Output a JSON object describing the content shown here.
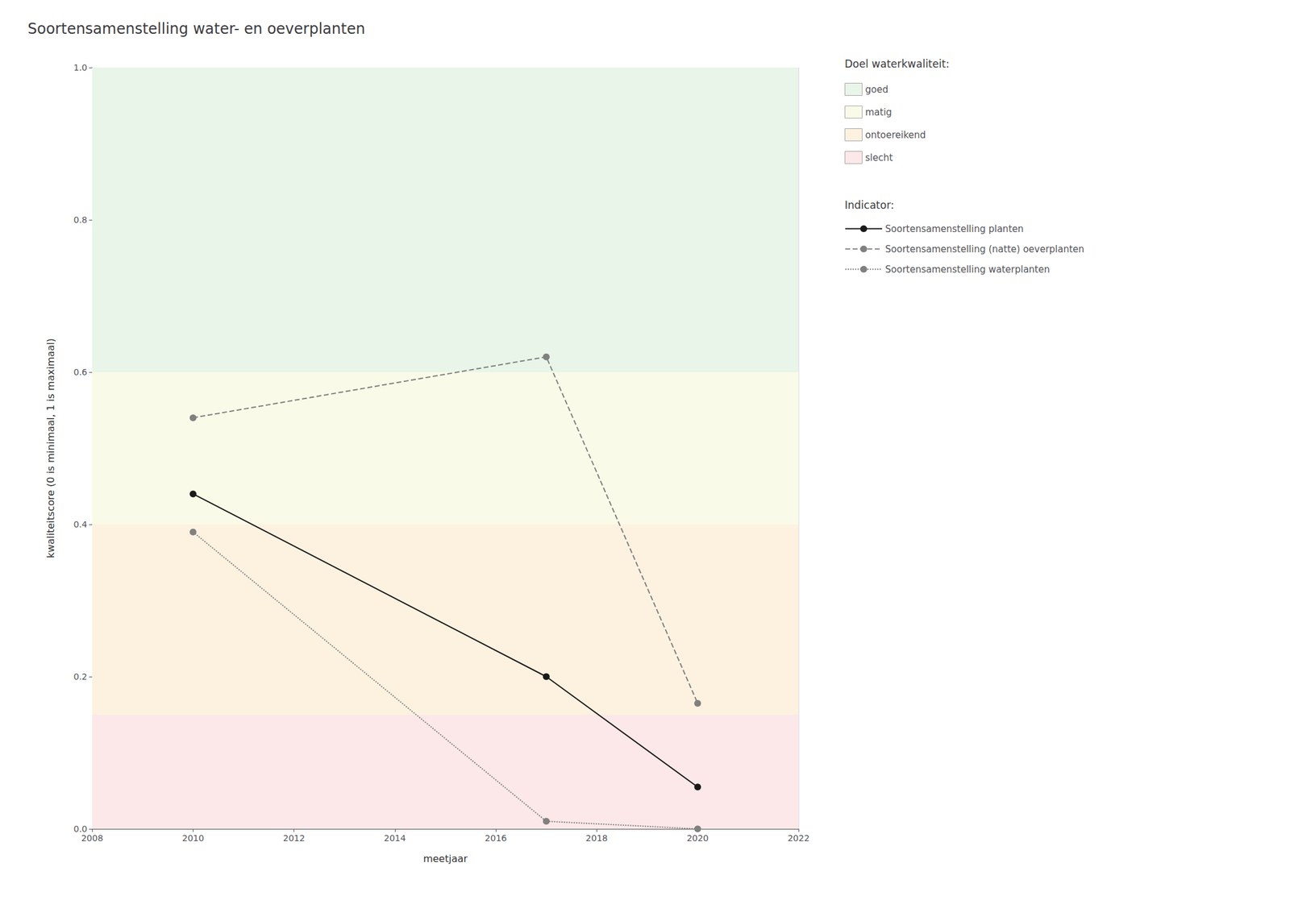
{
  "chart_data": {
    "type": "line",
    "title": "Soortensamenstelling water- en oeverplanten",
    "x_label": "meetjaar",
    "y_label": "kwaliteitscore (0 is minimaal, 1 is maximaal)",
    "x": [
      2010,
      2017,
      2020
    ],
    "xlim": [
      2008,
      2022
    ],
    "xticks": [
      2008,
      2010,
      2012,
      2014,
      2016,
      2018,
      2020,
      2022
    ],
    "ylim": [
      0.0,
      1.0
    ],
    "yticks": [
      {
        "value": 0,
        "label": "0.0"
      },
      0.2,
      0.4,
      0.6,
      0.8,
      {
        "value": 1,
        "label": "1.0"
      }
    ],
    "grid": true,
    "legend": "right",
    "zones_title": "Doel waterkwaliteit:",
    "zones": [
      {
        "name": "goed",
        "ymin": 0.6,
        "ymax": 1.0,
        "color": "#e8f5e8"
      },
      {
        "name": "matig",
        "ymin": 0.4,
        "ymax": 0.6,
        "color": "#fafae8"
      },
      {
        "name": "ontoereikend",
        "ymin": 0.15,
        "ymax": 0.4,
        "color": "#fdf2e0"
      },
      {
        "name": "slecht",
        "ymin": 0.0,
        "ymax": 0.15,
        "color": "#fce8e8"
      }
    ],
    "series_title": "Indicator:",
    "series": [
      {
        "name": "Soortensamenstelling planten",
        "color": "#1a1a1a",
        "line_style": "solid",
        "marker": "o",
        "values": [
          0.44,
          0.2,
          0.055
        ]
      },
      {
        "name": "Soortensamenstelling (natte) oeverplanten",
        "color": "#808080",
        "line_style": "dashed",
        "marker": "o",
        "values": [
          0.54,
          0.62,
          0.165
        ]
      },
      {
        "name": "Soortensamenstelling waterplanten",
        "color": "#808080",
        "line_style": "dotted",
        "marker": "o",
        "values": [
          0.39,
          0.01,
          0.0
        ]
      }
    ]
  }
}
